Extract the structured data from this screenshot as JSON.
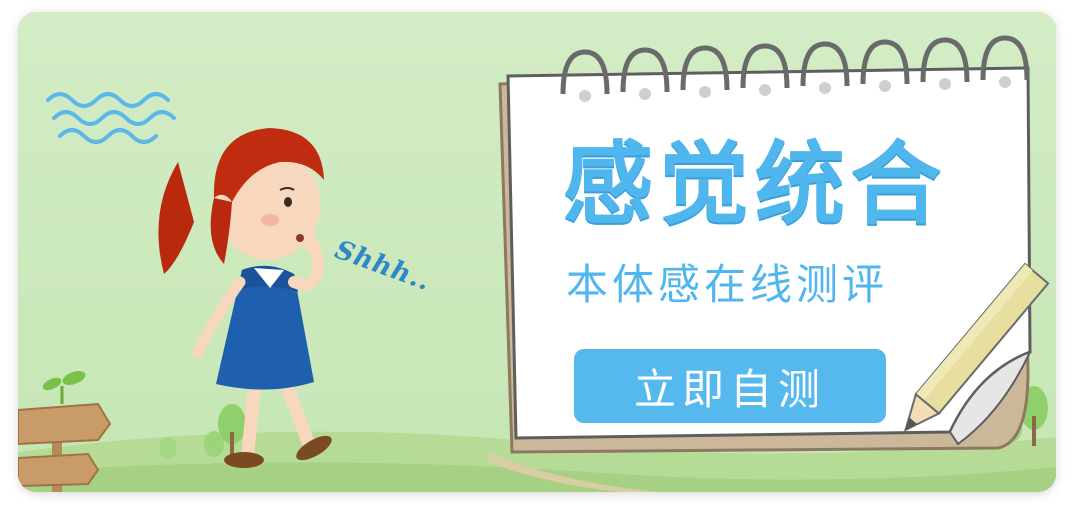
{
  "banner": {
    "title": "感觉统合",
    "subtitle": "本体感在线测评",
    "cta_label": "立即自测",
    "speech_text": "Shhh.."
  },
  "colors": {
    "background": "#cdeac0",
    "accent": "#4fb6ee",
    "button": "#56b9ee",
    "button_text": "#ffffff"
  },
  "icons": [
    "wave-lines-icon",
    "girl-illustration",
    "notebook-illustration",
    "pencil-icon",
    "tree-icon",
    "signpost-icon",
    "sprout-icon"
  ]
}
